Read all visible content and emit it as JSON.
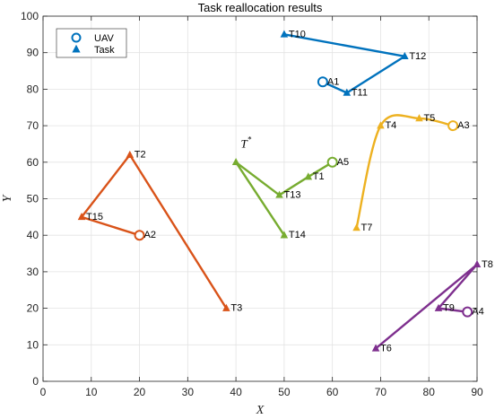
{
  "chart_data": {
    "type": "line",
    "title": "Task reallocation results",
    "xlabel": "X",
    "ylabel": "Y",
    "xlim": [
      0,
      90
    ],
    "ylim": [
      0,
      100
    ],
    "xticks": [
      0,
      10,
      20,
      30,
      40,
      50,
      60,
      70,
      80,
      90
    ],
    "yticks": [
      0,
      10,
      20,
      30,
      40,
      50,
      60,
      70,
      80,
      90,
      100
    ],
    "grid": true,
    "legend": {
      "placement": "top-left",
      "entries": [
        {
          "label": "UAV",
          "marker": "circle"
        },
        {
          "label": "Task",
          "marker": "triangle"
        }
      ]
    },
    "annotation": {
      "text": "T",
      "superscript": "*",
      "x": 41,
      "y": 64
    },
    "series": [
      {
        "color": "#0072BD",
        "uav": {
          "label": "A1",
          "x": 58,
          "y": 82
        },
        "path": [
          {
            "label": "A1",
            "x": 58,
            "y": 82,
            "kind": "uav"
          },
          {
            "label": "T11",
            "x": 63,
            "y": 79,
            "kind": "task"
          },
          {
            "label": "T12",
            "x": 75,
            "y": 89,
            "kind": "task"
          },
          {
            "label": "T10",
            "x": 50,
            "y": 95,
            "kind": "task"
          }
        ]
      },
      {
        "color": "#D95319",
        "uav": {
          "label": "A2",
          "x": 20,
          "y": 40
        },
        "path": [
          {
            "label": "A2",
            "x": 20,
            "y": 40,
            "kind": "uav"
          },
          {
            "label": "T15",
            "x": 8,
            "y": 45,
            "kind": "task"
          },
          {
            "label": "T2",
            "x": 18,
            "y": 62,
            "kind": "task"
          },
          {
            "label": "T3",
            "x": 38,
            "y": 20,
            "kind": "task"
          }
        ]
      },
      {
        "color": "#EDB120",
        "uav": {
          "label": "A3",
          "x": 85,
          "y": 70
        },
        "smooth": true,
        "path": [
          {
            "label": "A3",
            "x": 85,
            "y": 70,
            "kind": "uav"
          },
          {
            "label": "T5",
            "x": 78,
            "y": 72,
            "kind": "task"
          },
          {
            "label": "T4",
            "x": 70,
            "y": 70,
            "kind": "task"
          },
          {
            "label": "T7",
            "x": 65,
            "y": 42,
            "kind": "task"
          }
        ]
      },
      {
        "color": "#7E2F8E",
        "uav": {
          "label": "A4",
          "x": 88,
          "y": 19
        },
        "path": [
          {
            "label": "A4",
            "x": 88,
            "y": 19,
            "kind": "uav"
          },
          {
            "label": "T9",
            "x": 82,
            "y": 20,
            "kind": "task"
          },
          {
            "label": "T8",
            "x": 90,
            "y": 32,
            "kind": "task"
          },
          {
            "label": "T6",
            "x": 69,
            "y": 9,
            "kind": "task"
          }
        ]
      },
      {
        "color": "#77AC30",
        "uav": {
          "label": "A5",
          "x": 60,
          "y": 60
        },
        "path": [
          {
            "label": "A5",
            "x": 60,
            "y": 60,
            "kind": "uav"
          },
          {
            "label": "T1",
            "x": 55,
            "y": 56,
            "kind": "task"
          },
          {
            "label": "T13",
            "x": 49,
            "y": 51,
            "kind": "task"
          },
          {
            "label": "",
            "x": 40,
            "y": 60,
            "kind": "task"
          },
          {
            "label": "T14",
            "x": 50,
            "y": 40,
            "kind": "task"
          }
        ]
      }
    ]
  }
}
